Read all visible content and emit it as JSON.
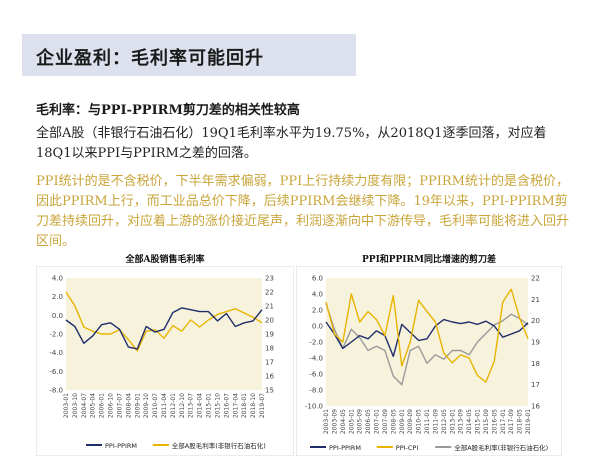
{
  "slide": {
    "title": "企业盈利：毛利率可能回升",
    "subheading": "毛利率：与PPI-PPIRM剪刀差的相关性较高",
    "paragraph1": "全部A股（非银行石油石化）19Q1毛利率水平为19.75%，从2018Q1逐季回落，对应着18Q1以来PPI与PPIRM之差的回落。",
    "paragraph2": "PPI统计的是不含税价，下半年需求偏弱，PPI上行持续力度有限；PPIRM统计的是含税价，因此PPIRM上行，而工业品总价下降，后续PPIRM会继续下降。19年以来，PPI-PPIRM剪刀差持续回升，对应着上游的涨价接近尾声，利润逐渐向中下游传导，毛利率可能将进入回升区间。"
  },
  "colors": {
    "navy": "#1f2d6b",
    "gold": "#e8b400",
    "gray": "#9a9a9a",
    "band": "#f7f2dc"
  },
  "chart_data": [
    {
      "type": "line",
      "title": "全部A股销售毛利率",
      "x": [
        "2003-01",
        "2003-10",
        "2004-07",
        "2005-04",
        "2006-01",
        "2006-10",
        "2007-07",
        "2008-04",
        "2009-01",
        "2009-10",
        "2010-07",
        "2011-04",
        "2012-01",
        "2012-10",
        "2013-07",
        "2014-04",
        "2015-01",
        "2015-10",
        "2016-07",
        "2017-04",
        "2018-01",
        "2018-10",
        "2019-07"
      ],
      "ylim_left": [
        -8.0,
        4.0
      ],
      "yticks_left": [
        "4.0",
        "2.0",
        "0.0",
        "-2.0",
        "-4.0",
        "-6.0",
        "-8.0"
      ],
      "ylim_right": [
        15,
        23
      ],
      "yticks_right": [
        "23",
        "22",
        "21",
        "20",
        "19",
        "18",
        "17",
        "16",
        "15"
      ],
      "grid": false,
      "legend_position": "bottom",
      "series": [
        {
          "name": "PPI-PPIRM",
          "axis": "left",
          "color": "#1f2d6b",
          "values": [
            -0.5,
            -1.2,
            -3.0,
            -2.2,
            -1.0,
            -0.8,
            -1.5,
            -3.4,
            -3.6,
            -1.2,
            -1.8,
            -1.5,
            0.3,
            0.8,
            0.6,
            0.4,
            0.4,
            -0.6,
            0.2,
            -1.2,
            -0.8,
            -0.6,
            0.6
          ]
        },
        {
          "name": "全部A股毛利率(非银行石油石化)",
          "axis": "right",
          "color": "#e8b400",
          "values": [
            22.0,
            21.0,
            19.5,
            19.2,
            19.0,
            19.0,
            19.3,
            18.6,
            17.8,
            19.2,
            19.3,
            18.7,
            19.6,
            19.2,
            20.0,
            19.5,
            20.0,
            20.4,
            20.6,
            20.8,
            20.5,
            20.2,
            19.8
          ]
        }
      ]
    },
    {
      "type": "line",
      "title": "PPI和PPIRM同比增速的剪刀差",
      "x": [
        "2003-01",
        "2003-09",
        "2004-05",
        "2005-01",
        "2005-09",
        "2006-05",
        "2007-01",
        "2007-09",
        "2008-05",
        "2009-01",
        "2009-09",
        "2010-05",
        "2011-01",
        "2011-09",
        "2012-05",
        "2013-01",
        "2013-09",
        "2014-05",
        "2015-01",
        "2015-09",
        "2016-05",
        "2017-01",
        "2017-09",
        "2018-05",
        "2019-01"
      ],
      "ylim_left": [
        -10.0,
        6.0
      ],
      "yticks_left": [
        "6.0",
        "4.0",
        "2.0",
        "0.0",
        "-2.0",
        "-4.0",
        "-6.0",
        "-8.0",
        "-10.0"
      ],
      "ylim_right": [
        16,
        22
      ],
      "yticks_right": [
        "22",
        "21",
        "20",
        "19",
        "18",
        "17",
        "16"
      ],
      "grid": false,
      "legend_position": "bottom",
      "series": [
        {
          "name": "PPI-PPIRM",
          "axis": "left",
          "color": "#1f2d6b",
          "values": [
            0.5,
            -1.0,
            -2.8,
            -2.0,
            -1.2,
            -1.6,
            -0.6,
            -1.2,
            -3.8,
            0.2,
            -0.8,
            -1.8,
            -1.6,
            0.0,
            0.8,
            0.5,
            0.3,
            0.5,
            0.2,
            0.6,
            0.0,
            -1.4,
            -1.0,
            -0.6,
            0.4
          ]
        },
        {
          "name": "PPI-CPI",
          "axis": "left",
          "color": "#e8b400",
          "values": [
            3.0,
            -1.0,
            -2.0,
            4.0,
            0.5,
            1.8,
            0.8,
            -1.2,
            3.8,
            -5.0,
            -2.0,
            3.2,
            1.8,
            0.5,
            -3.4,
            -4.6,
            -3.6,
            -4.0,
            -6.2,
            -7.0,
            -4.4,
            3.0,
            4.6,
            1.0,
            -1.6
          ]
        },
        {
          "name": "全部A股毛利率(非银行石油石化)",
          "axis": "right",
          "color": "#9a9a9a",
          "values": [
            20.8,
            19.6,
            18.7,
            19.6,
            19.2,
            18.6,
            18.8,
            18.6,
            17.4,
            17.0,
            18.6,
            18.8,
            18.0,
            18.4,
            18.2,
            18.6,
            18.6,
            18.4,
            19.0,
            19.4,
            19.8,
            20.0,
            20.3,
            20.1,
            19.8
          ]
        }
      ]
    }
  ]
}
